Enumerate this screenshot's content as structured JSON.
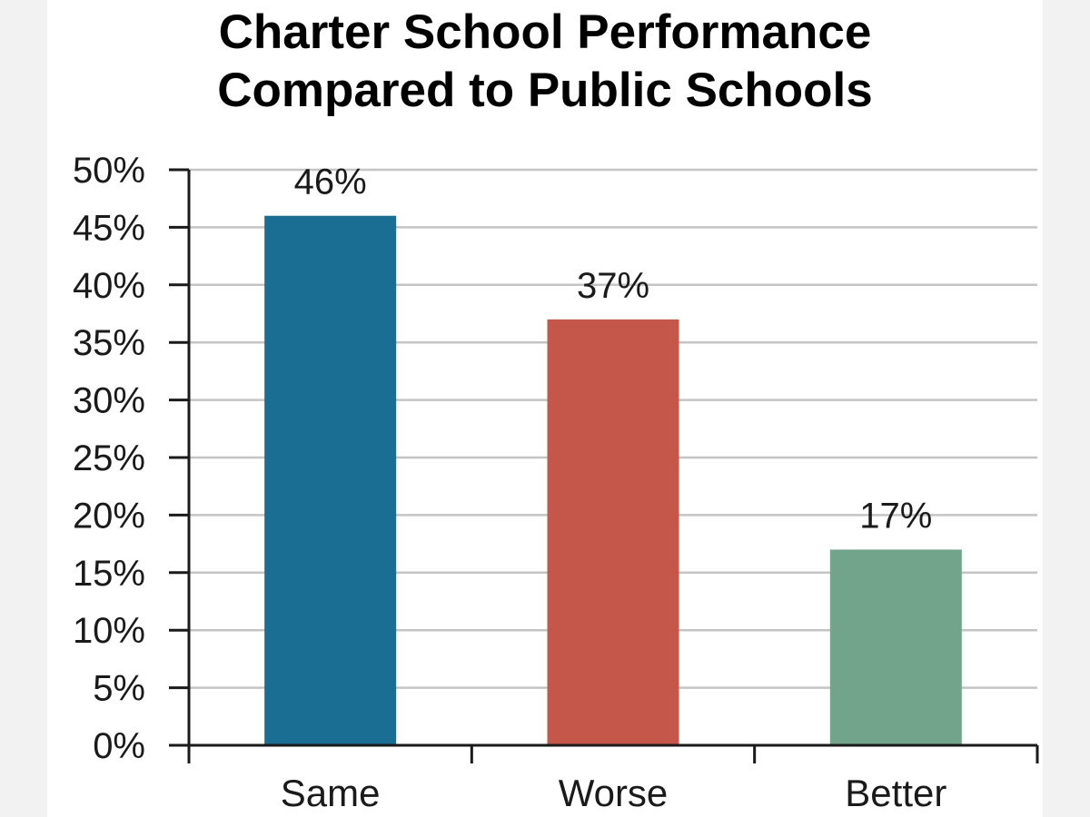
{
  "chart_data": {
    "type": "bar",
    "title_lines": [
      "Charter School Performance",
      "Compared to Public Schools"
    ],
    "categories": [
      "Same",
      "Worse",
      "Better"
    ],
    "values": [
      46,
      37,
      17
    ],
    "value_labels": [
      "46%",
      "37%",
      "17%"
    ],
    "colors": [
      "#1a6e93",
      "#c4574a",
      "#72a48c"
    ],
    "xlabel": "",
    "ylabel": "",
    "ylim": [
      0,
      50
    ],
    "y_ticks": [
      "0%",
      "5%",
      "10%",
      "15%",
      "20%",
      "25%",
      "30%",
      "35%",
      "40%",
      "45%",
      "50%"
    ],
    "grid": true,
    "legend": "none"
  }
}
